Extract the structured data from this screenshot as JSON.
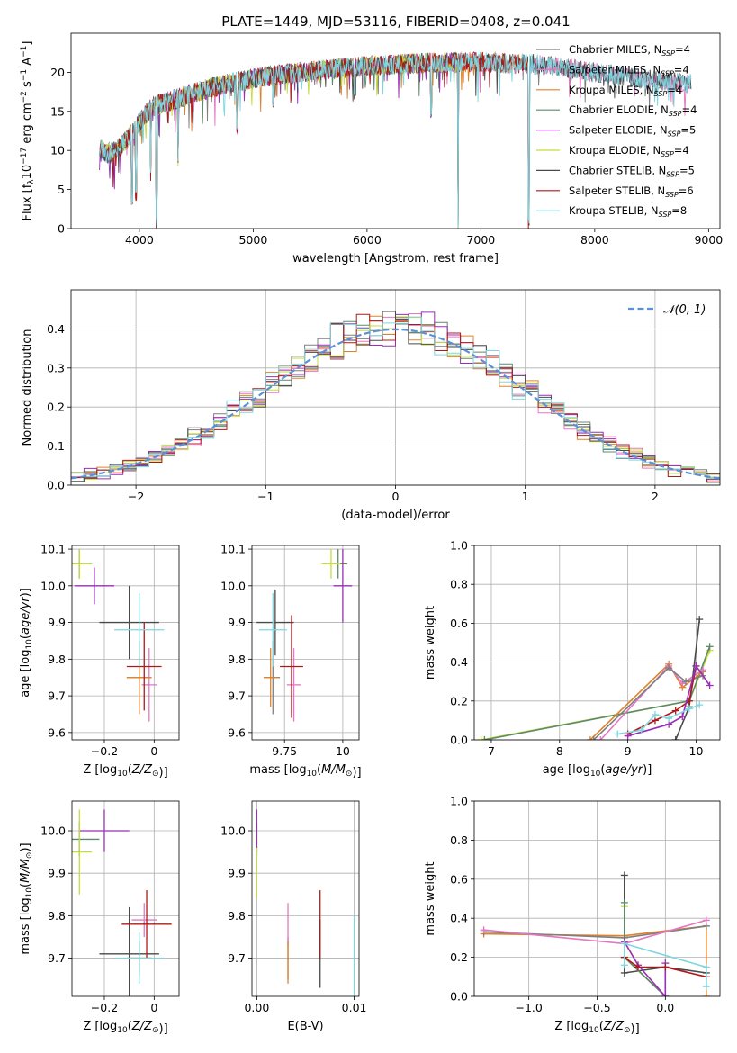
{
  "figure_title": "PLATE=1449, MJD=53116, FIBERID=0408, z=0.041",
  "colors": {
    "chab_miles": "#7f7f7f",
    "salp_miles": "#e377c2",
    "krou_miles": "#e0822c",
    "chab_elodie": "#5c8a6a",
    "salp_elodie": "#9a2fb5",
    "krou_elodie": "#c5dd3a",
    "chab_stelib": "#4a4a4a",
    "salp_stelib": "#b01818",
    "krou_stelib": "#7fd6e0",
    "gauss": "#5b8fd6",
    "grid": "#b0b0b0"
  },
  "legend_names": [
    "Chabrier MILES, N",
    "Salpeter MILES, N",
    "Kroupa MILES, N",
    "Chabrier ELODIE, N",
    "Salpeter ELODIE, N",
    "Kroupa ELODIE, N",
    "Chabrier STELIB, N",
    "Salpeter STELIB, N",
    "Kroupa STELIB, N"
  ],
  "legend_sub": "SSP",
  "chart_data": [
    {
      "type": "line",
      "title": "PLATE=1449, MJD=53116, FIBERID=0408, z=0.041",
      "xlabel": "wavelength [Angstrom, rest frame]",
      "ylabel": "Flux [f",
      "xlim": [
        3400,
        9100
      ],
      "ylim": [
        0,
        25
      ],
      "xticks": [
        4000,
        5000,
        6000,
        7000,
        8000,
        9000
      ],
      "yticks": [
        0,
        5,
        10,
        15,
        20
      ],
      "series": [
        {
          "name": "Chabrier MILES",
          "nssp": 4,
          "color_key": "chab_miles",
          "x_end": 8850
        },
        {
          "name": "Salpeter MILES",
          "nssp": 4,
          "color_key": "salp_miles",
          "x_end": 8850
        },
        {
          "name": "Kroupa MILES",
          "nssp": 4,
          "color_key": "krou_miles",
          "x_end": 7420
        },
        {
          "name": "Chabrier ELODIE",
          "nssp": 4,
          "color_key": "chab_elodie",
          "x_end": 6800
        },
        {
          "name": "Salpeter ELODIE",
          "nssp": 5,
          "color_key": "salp_elodie",
          "x_end": 6800
        },
        {
          "name": "Kroupa ELODIE",
          "nssp": 4,
          "color_key": "krou_elodie",
          "x_end": 6800
        },
        {
          "name": "Chabrier STELIB",
          "nssp": 5,
          "color_key": "chab_stelib",
          "x_end": 8850
        },
        {
          "name": "Salpeter STELIB",
          "nssp": 6,
          "color_key": "salp_stelib",
          "x_end": 7420
        },
        {
          "name": "Kroupa STELIB",
          "nssp": 8,
          "color_key": "krou_stelib",
          "x_end": 8850
        }
      ],
      "continuum": [
        [
          3650,
          10.5
        ],
        [
          3700,
          9.5
        ],
        [
          3800,
          10.0
        ],
        [
          3900,
          11.5
        ],
        [
          4000,
          13.5
        ],
        [
          4100,
          15.5
        ],
        [
          4300,
          16.5
        ],
        [
          4500,
          17.5
        ],
        [
          4700,
          18.3
        ],
        [
          5000,
          19.2
        ],
        [
          5300,
          19.8
        ],
        [
          5600,
          20.3
        ],
        [
          6000,
          20.8
        ],
        [
          6500,
          21.2
        ],
        [
          7000,
          21.3
        ],
        [
          7500,
          21.0
        ],
        [
          8000,
          20.0
        ],
        [
          8500,
          19.0
        ],
        [
          8850,
          18.5
        ]
      ],
      "dips": [
        [
          3935,
          3.0
        ],
        [
          3970,
          3.5
        ],
        [
          4100,
          6.0
        ],
        [
          4150,
          0
        ],
        [
          4340,
          8.0
        ],
        [
          4860,
          12.0
        ],
        [
          5175,
          15.5
        ],
        [
          5890,
          16.5
        ],
        [
          6563,
          14.0
        ],
        [
          6800,
          0
        ],
        [
          7420,
          0
        ]
      ]
    },
    {
      "type": "bar",
      "title": "",
      "xlabel": "(data-model)/error",
      "ylabel": "Normed distribution",
      "xlim": [
        -2.5,
        2.5
      ],
      "ylim": [
        0,
        0.5
      ],
      "xticks": [
        -2,
        -1,
        0,
        1,
        2
      ],
      "yticks": [
        0.0,
        0.1,
        0.2,
        0.3,
        0.4
      ],
      "legend": "𝒩(0, 1)",
      "bin_width": 0.1
    },
    {
      "type": "scatter",
      "xlabel": "Z [log10(Z/Z⊙)]",
      "ylabel": "age  [log10(age/yr)]",
      "xlim": [
        -0.33,
        0.1
      ],
      "ylim": [
        9.58,
        10.11
      ],
      "xticks": [
        -0.2,
        0.0
      ],
      "yticks": [
        9.6,
        9.7,
        9.8,
        9.9,
        10.0,
        10.1
      ],
      "points": [
        {
          "s": "chab_miles",
          "x": -0.06,
          "y": 9.75,
          "xe": 0.05,
          "ye": 0.1
        },
        {
          "s": "salp_miles",
          "x": -0.02,
          "y": 9.73,
          "xe": 0.03,
          "ye": 0.1
        },
        {
          "s": "krou_miles",
          "x": -0.06,
          "y": 9.75,
          "xe": 0.05,
          "ye": 0.1
        },
        {
          "s": "chab_elodie",
          "x": -0.3,
          "y": 10.06,
          "xe": 0.05,
          "ye": 0.04
        },
        {
          "s": "salp_elodie",
          "x": -0.24,
          "y": 10.0,
          "xe": 0.08,
          "ye": 0.05
        },
        {
          "s": "krou_elodie",
          "x": -0.3,
          "y": 10.06,
          "xe": 0.05,
          "ye": 0.04
        },
        {
          "s": "chab_stelib",
          "x": -0.1,
          "y": 9.9,
          "xe": 0.12,
          "ye": 0.1
        },
        {
          "s": "salp_stelib",
          "x": -0.04,
          "y": 9.78,
          "xe": 0.07,
          "ye": 0.12
        },
        {
          "s": "krou_stelib",
          "x": -0.06,
          "y": 9.88,
          "xe": 0.1,
          "ye": 0.1
        }
      ]
    },
    {
      "type": "scatter",
      "xlabel": "mass [log10(M/M⊙)]",
      "ylabel": "",
      "xlim": [
        9.61,
        10.07
      ],
      "ylim": [
        9.58,
        10.11
      ],
      "xticks": [
        9.75,
        10.0
      ],
      "yticks": [
        9.6,
        9.7,
        9.8,
        9.9,
        10.0,
        10.1
      ],
      "points": [
        {
          "s": "chab_miles",
          "x": 9.7,
          "y": 9.75,
          "xe": 0.03,
          "ye": 0.1
        },
        {
          "s": "salp_miles",
          "x": 9.79,
          "y": 9.73,
          "xe": 0.03,
          "ye": 0.1
        },
        {
          "s": "krou_miles",
          "x": 9.69,
          "y": 9.75,
          "xe": 0.03,
          "ye": 0.08
        },
        {
          "s": "chab_elodie",
          "x": 9.98,
          "y": 10.06,
          "xe": 0.04,
          "ye": 0.04
        },
        {
          "s": "salp_elodie",
          "x": 10.0,
          "y": 10.0,
          "xe": 0.04,
          "ye": 0.1
        },
        {
          "s": "krou_elodie",
          "x": 9.95,
          "y": 10.06,
          "xe": 0.04,
          "ye": 0.04
        },
        {
          "s": "chab_stelib",
          "x": 9.71,
          "y": 9.9,
          "xe": 0.08,
          "ye": 0.09
        },
        {
          "s": "salp_stelib",
          "x": 9.78,
          "y": 9.78,
          "xe": 0.05,
          "ye": 0.14
        },
        {
          "s": "krou_stelib",
          "x": 9.7,
          "y": 9.88,
          "xe": 0.06,
          "ye": 0.1
        }
      ]
    },
    {
      "type": "line",
      "xlabel": "age  [log10(age/yr)]",
      "ylabel": "mass weight",
      "xlim": [
        6.75,
        10.35
      ],
      "ylim": [
        0,
        1
      ],
      "xticks": [
        7,
        8,
        9,
        10
      ],
      "yticks": [
        0.0,
        0.2,
        0.4,
        0.6,
        0.8,
        1.0
      ],
      "series": [
        {
          "s": "krou_elodie",
          "x": [
            6.85,
            9.9,
            10.2
          ],
          "y": [
            0.0,
            0.2,
            0.46
          ]
        },
        {
          "s": "chab_elodie",
          "x": [
            6.9,
            9.9,
            10.2
          ],
          "y": [
            0.0,
            0.2,
            0.48
          ]
        },
        {
          "s": "krou_miles",
          "x": [
            8.45,
            9.6,
            9.8,
            10.1
          ],
          "y": [
            0.0,
            0.39,
            0.27,
            0.35
          ]
        },
        {
          "s": "salp_miles",
          "x": [
            8.6,
            9.6,
            9.8,
            10.1
          ],
          "y": [
            0.0,
            0.38,
            0.29,
            0.36
          ]
        },
        {
          "s": "chab_miles",
          "x": [
            8.5,
            9.6,
            9.85,
            10.1
          ],
          "y": [
            0.0,
            0.37,
            0.3,
            0.33
          ]
        },
        {
          "s": "chab_stelib",
          "x": [
            9.7,
            9.9,
            10.05
          ],
          "y": [
            0.0,
            0.17,
            0.62
          ]
        },
        {
          "s": "salp_stelib",
          "x": [
            9.0,
            9.4,
            9.7,
            9.9,
            10.0
          ],
          "y": [
            0.03,
            0.1,
            0.15,
            0.2,
            0.38
          ]
        },
        {
          "s": "salp_elodie",
          "x": [
            9.0,
            9.6,
            9.8,
            10.0,
            10.2
          ],
          "y": [
            0.02,
            0.08,
            0.12,
            0.38,
            0.28
          ]
        },
        {
          "s": "krou_stelib",
          "x": [
            8.85,
            9.2,
            9.4,
            9.6,
            9.9,
            10.05
          ],
          "y": [
            0.03,
            0.05,
            0.13,
            0.11,
            0.16,
            0.18
          ]
        }
      ]
    },
    {
      "type": "scatter",
      "xlabel": "Z [log10(Z/Z⊙)]",
      "ylabel": "mass [log10(M/M⊙)]",
      "xlim": [
        -0.33,
        0.1
      ],
      "ylim": [
        9.61,
        10.07
      ],
      "xticks": [
        -0.2,
        0.0
      ],
      "yticks": [
        9.7,
        9.8,
        9.9,
        10.0
      ],
      "points": [
        {
          "s": "chab_miles",
          "x": -0.06,
          "y": 9.7,
          "xe": 0.05,
          "ye": 0.04
        },
        {
          "s": "salp_miles",
          "x": -0.04,
          "y": 9.79,
          "xe": 0.05,
          "ye": 0.04
        },
        {
          "s": "krou_miles",
          "x": -0.06,
          "y": 9.7,
          "xe": 0.05,
          "ye": 0.04
        },
        {
          "s": "chab_elodie",
          "x": -0.3,
          "y": 9.98,
          "xe": 0.08,
          "ye": 0.04
        },
        {
          "s": "salp_elodie",
          "x": -0.2,
          "y": 10.0,
          "xe": 0.1,
          "ye": 0.05
        },
        {
          "s": "krou_elodie",
          "x": -0.3,
          "y": 9.95,
          "xe": 0.05,
          "ye": 0.1
        },
        {
          "s": "chab_stelib",
          "x": -0.1,
          "y": 9.71,
          "xe": 0.12,
          "ye": 0.11
        },
        {
          "s": "salp_stelib",
          "x": -0.03,
          "y": 9.78,
          "xe": 0.1,
          "ye": 0.08
        },
        {
          "s": "krou_stelib",
          "x": -0.06,
          "y": 9.7,
          "xe": 0.1,
          "ye": 0.06
        }
      ]
    },
    {
      "type": "scatter",
      "xlabel": "E(B-V)",
      "ylabel": "",
      "xlim": [
        -0.0005,
        0.0105
      ],
      "ylim": [
        9.61,
        10.07
      ],
      "xticks": [
        0.0,
        0.01
      ],
      "tick_labels": [
        "0.00",
        "0.01"
      ],
      "yticks": [
        9.7,
        9.8,
        9.9,
        10.0
      ],
      "points": [
        {
          "s": "chab_miles",
          "x": 0.0032,
          "y": 9.7,
          "xe": 0,
          "ye": 0.05
        },
        {
          "s": "salp_miles",
          "x": 0.0032,
          "y": 9.78,
          "xe": 0,
          "ye": 0.05
        },
        {
          "s": "krou_miles",
          "x": 0.0032,
          "y": 9.69,
          "xe": 0,
          "ye": 0.05
        },
        {
          "s": "chab_elodie",
          "x": 0.0,
          "y": 9.98,
          "xe": 0,
          "ye": 0.04
        },
        {
          "s": "salp_elodie",
          "x": 0.0,
          "y": 10.0,
          "xe": 0,
          "ye": 0.05
        },
        {
          "s": "krou_elodie",
          "x": 0.0,
          "y": 9.9,
          "xe": 0,
          "ye": 0.06
        },
        {
          "s": "chab_stelib",
          "x": 0.0065,
          "y": 9.71,
          "xe": 0,
          "ye": 0.08
        },
        {
          "s": "salp_stelib",
          "x": 0.0065,
          "y": 9.78,
          "xe": 0,
          "ye": 0.08
        },
        {
          "s": "krou_stelib",
          "x": 0.01,
          "y": 9.7,
          "xe": 0,
          "ye": 0.1
        }
      ]
    },
    {
      "type": "line",
      "xlabel": "Z [log10(Z/Z⊙)]",
      "ylabel": "mass weight",
      "xlim": [
        -1.4,
        0.4
      ],
      "ylim": [
        0,
        1
      ],
      "xticks": [
        -1.0,
        -0.5,
        0.0
      ],
      "tick_labels": [
        "−1.0",
        "−0.5",
        "0.0"
      ],
      "yticks": [
        0.0,
        0.2,
        0.4,
        0.6,
        0.8,
        1.0
      ],
      "series": [
        {
          "s": "krou_miles",
          "x": [
            -1.33,
            -0.3,
            0.3,
            0.3
          ],
          "y": [
            0.32,
            0.31,
            0.36,
            0.0
          ]
        },
        {
          "s": "chab_miles",
          "x": [
            -1.33,
            -0.3,
            0.3
          ],
          "y": [
            0.33,
            0.3,
            0.36
          ]
        },
        {
          "s": "salp_miles",
          "x": [
            -1.33,
            -0.3,
            0.3
          ],
          "y": [
            0.34,
            0.27,
            0.39
          ]
        },
        {
          "s": "chab_stelib",
          "x": [
            -0.3,
            -0.3,
            0.0,
            0.3
          ],
          "y": [
            0.62,
            0.12,
            0.15,
            0.12
          ]
        },
        {
          "s": "krou_elodie",
          "x": [
            -0.3,
            -0.3,
            0.0
          ],
          "y": [
            0.46,
            0.2,
            0.0
          ]
        },
        {
          "s": "chab_elodie",
          "x": [
            -0.3,
            -0.3,
            0.0
          ],
          "y": [
            0.48,
            0.2,
            0.0
          ]
        },
        {
          "s": "salp_elodie",
          "x": [
            -0.3,
            -0.2,
            0.0,
            0.0
          ],
          "y": [
            0.28,
            0.16,
            0.0,
            0.17
          ]
        },
        {
          "s": "salp_stelib",
          "x": [
            -0.3,
            -0.2,
            0.0,
            0.3
          ],
          "y": [
            0.2,
            0.15,
            0.15,
            0.1
          ]
        },
        {
          "s": "krou_stelib",
          "x": [
            -0.3,
            -0.3,
            0.3,
            0.3
          ],
          "y": [
            0.16,
            0.27,
            0.15,
            0.05
          ]
        }
      ]
    }
  ]
}
